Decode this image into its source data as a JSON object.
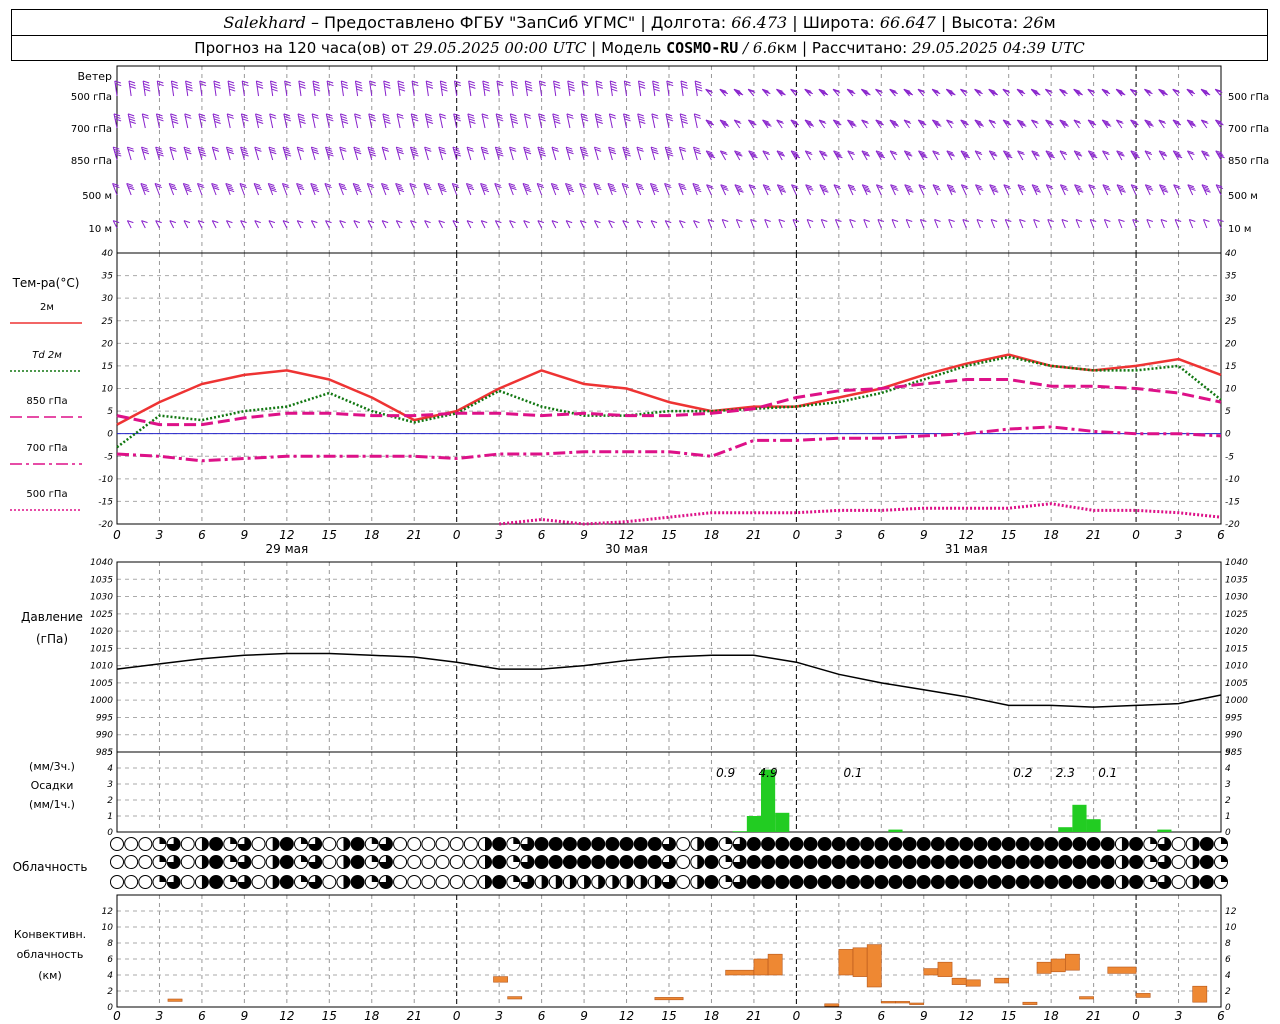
{
  "header": {
    "station": "Salekhard",
    "provider": "– Предоставлено ФГБУ \"ЗапСиб УГМС\"",
    "lon_label": "Долгота:",
    "lon": "66.473",
    "lat_label": "Широта:",
    "lat": "66.647",
    "alt_label": "Высота:",
    "alt": "26",
    "alt_unit": "м",
    "forecast_label": "Прогноз на 120 часа(ов) от",
    "forecast_start": "29.05.2025 00:00 UTC",
    "model_label": "Модель",
    "model": "COSMO-RU",
    "resolution": "/ 6.6",
    "res_unit": "км",
    "calc_label": "Рассчитано:",
    "calc_time": "29.05.2025 04:39 UTC"
  },
  "colors": {
    "t2m": "#ee3333",
    "td2m": "#117711",
    "t850": "#dd1188",
    "t700": "#dd1188",
    "t500": "#dd1188",
    "wind": "#8822cc",
    "pressure": "#000000",
    "precip": "#22cc22",
    "conv": "#ee8833",
    "zero": "#2222cc"
  },
  "chart_data": [
    {
      "type": "wind-barbs",
      "title": "Ветер",
      "levels": [
        "500 гПа",
        "700 гПа",
        "850 гПа",
        "500 м",
        "10 м"
      ],
      "wind_description": "wind barbs (direction and speed) at each level, every hour"
    },
    {
      "type": "line",
      "title": "Тем-ра(°C)",
      "ylim": [
        -20,
        40
      ],
      "yticks": [
        40,
        35,
        30,
        25,
        20,
        15,
        10,
        5,
        0,
        -5,
        -10,
        -15,
        -20
      ],
      "x_ticks": [
        "0",
        "3",
        "6",
        "9",
        "12",
        "15",
        "18",
        "21",
        "0",
        "3",
        "6",
        "9",
        "12",
        "15",
        "18",
        "21",
        "0",
        "3",
        "6",
        "9",
        "12",
        "15",
        "18",
        "21",
        "0",
        "3",
        "6"
      ],
      "dates": [
        "29 мая",
        "30 мая",
        "31 мая"
      ],
      "x": [
        0,
        3,
        6,
        9,
        12,
        15,
        18,
        21,
        24,
        27,
        30,
        33,
        36,
        39,
        42,
        45,
        48,
        51,
        54,
        57,
        60,
        63,
        66,
        69,
        72,
        75,
        78
      ],
      "series": [
        {
          "name": "2м",
          "key": "t2m",
          "style": "solid",
          "values": [
            2,
            7,
            11,
            13,
            14,
            12,
            8,
            3,
            5,
            10,
            14,
            11,
            10,
            7,
            5,
            6,
            6,
            8,
            10,
            13,
            15.5,
            17.5,
            15,
            14,
            15,
            16.5,
            13
          ]
        },
        {
          "name": "Td  2м",
          "key": "td2m",
          "style": "dotted",
          "values": [
            -3,
            4,
            3,
            5,
            6,
            9,
            5,
            2.5,
            4.5,
            9.5,
            6,
            4,
            4,
            5,
            5,
            5.5,
            6,
            7,
            9,
            12,
            15,
            17,
            15,
            14,
            14,
            15,
            7.5
          ]
        },
        {
          "name": "850 гПа",
          "key": "t850",
          "style": "dash",
          "values": [
            4,
            2,
            2,
            3.5,
            4.5,
            4.5,
            4,
            4,
            4.5,
            4.5,
            4,
            4.5,
            4,
            4,
            4.5,
            5.5,
            8,
            9.5,
            10,
            11,
            12,
            12,
            10.5,
            10.5,
            10,
            9,
            7
          ]
        },
        {
          "name": "700 гПа",
          "key": "t700",
          "style": "dashdot",
          "values": [
            -4.5,
            -5,
            -6,
            -5.5,
            -5,
            -5,
            -5,
            -5,
            -5.5,
            -4.5,
            -4.5,
            -4,
            -4,
            -4,
            -5,
            -1.5,
            -1.5,
            -1,
            -1,
            -0.5,
            0,
            1,
            1.5,
            0.5,
            0,
            0,
            -0.5
          ]
        },
        {
          "name": "500 гПа",
          "key": "t500",
          "style": "dotted-fine",
          "values": [
            null,
            null,
            null,
            null,
            null,
            null,
            null,
            null,
            null,
            -20,
            -19,
            -20,
            -19.5,
            -18.5,
            -17.5,
            -17.5,
            -17.5,
            -17,
            -17,
            -16.5,
            -16.5,
            -16.5,
            -15.5,
            -17,
            -17,
            -17.5,
            -18.5
          ]
        }
      ]
    },
    {
      "type": "line",
      "title": "Давление",
      "unit": "(гПа)",
      "ylim": [
        985,
        1040
      ],
      "yticks": [
        1040,
        1035,
        1030,
        1025,
        1020,
        1015,
        1010,
        1005,
        1000,
        995,
        990,
        985
      ],
      "x": [
        0,
        3,
        6,
        9,
        12,
        15,
        18,
        21,
        24,
        27,
        30,
        33,
        36,
        39,
        42,
        45,
        48,
        51,
        54,
        57,
        60,
        63,
        66,
        69,
        72,
        75,
        78
      ],
      "series": [
        {
          "name": "pressure",
          "key": "pressure",
          "values": [
            1009,
            1010.5,
            1012,
            1013,
            1013.5,
            1013.5,
            1013,
            1012.5,
            1011,
            1009,
            1009,
            1010,
            1011.5,
            1012.5,
            1013,
            1013,
            1011,
            1007.5,
            1005,
            1003,
            1001,
            998.5,
            998.5,
            998,
            998.5,
            999,
            1001.5
          ]
        }
      ]
    },
    {
      "type": "bar",
      "title": "Осадки",
      "units": [
        "(мм/3ч.)",
        "(мм/1ч.)"
      ],
      "ylim": [
        0,
        5
      ],
      "yticks": [
        5,
        4,
        3,
        2,
        1,
        0
      ],
      "bars": [
        {
          "t": 44,
          "v": 0.05
        },
        {
          "t": 45,
          "v": 1.0
        },
        {
          "t": 46,
          "v": 3.9
        },
        {
          "t": 47,
          "v": 1.2
        },
        {
          "t": 55,
          "v": 0.15
        },
        {
          "t": 67,
          "v": 0.3
        },
        {
          "t": 68,
          "v": 1.7
        },
        {
          "t": 69,
          "v": 0.8
        },
        {
          "t": 74,
          "v": 0.15
        }
      ],
      "totals": [
        {
          "t": 43,
          "label": "0.9"
        },
        {
          "t": 46,
          "label": "4.9"
        },
        {
          "t": 52,
          "label": "0.1"
        },
        {
          "t": 64,
          "label": "0.2"
        },
        {
          "t": 67,
          "label": "2.3"
        },
        {
          "t": 70,
          "label": "0.1"
        }
      ]
    },
    {
      "type": "table",
      "title": "Облачность",
      "cloud_description": "three rows of cloud-cover symbols (low, middle, high), one per hour"
    },
    {
      "type": "bar",
      "title": "Конвективн. облачность",
      "unit": "(км)",
      "ylim": [
        0,
        14
      ],
      "yticks": [
        12,
        10,
        8,
        6,
        4,
        2,
        0
      ],
      "ranges": [
        {
          "t0": 3.6,
          "t1": 4.6,
          "lo": 0.7,
          "hi": 1.0
        },
        {
          "t0": 26.6,
          "t1": 27.6,
          "lo": 3.1,
          "hi": 3.8
        },
        {
          "t0": 27.6,
          "t1": 28.6,
          "lo": 1.0,
          "hi": 1.3
        },
        {
          "t0": 38.0,
          "t1": 40.0,
          "lo": 0.9,
          "hi": 1.2
        },
        {
          "t0": 43.0,
          "t1": 45.0,
          "lo": 4.0,
          "hi": 4.6
        },
        {
          "t0": 45.0,
          "t1": 46.0,
          "lo": 4.0,
          "hi": 6.0
        },
        {
          "t0": 46.0,
          "t1": 47.0,
          "lo": 4.0,
          "hi": 6.6
        },
        {
          "t0": 50.0,
          "t1": 51.0,
          "lo": 0.1,
          "hi": 0.4
        },
        {
          "t0": 51.0,
          "t1": 52.0,
          "lo": 4.0,
          "hi": 7.2
        },
        {
          "t0": 52.0,
          "t1": 53.0,
          "lo": 3.8,
          "hi": 7.4
        },
        {
          "t0": 53.0,
          "t1": 54.0,
          "lo": 2.5,
          "hi": 7.8
        },
        {
          "t0": 54.0,
          "t1": 55.0,
          "lo": 0.5,
          "hi": 0.7
        },
        {
          "t0": 55.0,
          "t1": 56.0,
          "lo": 0.5,
          "hi": 0.7
        },
        {
          "t0": 56.0,
          "t1": 57.0,
          "lo": 0.3,
          "hi": 0.5
        },
        {
          "t0": 57.0,
          "t1": 58.0,
          "lo": 4.0,
          "hi": 4.8
        },
        {
          "t0": 58.0,
          "t1": 59.0,
          "lo": 3.8,
          "hi": 5.6
        },
        {
          "t0": 59.0,
          "t1": 60.0,
          "lo": 2.8,
          "hi": 3.6
        },
        {
          "t0": 60.0,
          "t1": 61.0,
          "lo": 2.6,
          "hi": 3.4
        },
        {
          "t0": 62.0,
          "t1": 63.0,
          "lo": 3.0,
          "hi": 3.6
        },
        {
          "t0": 64.0,
          "t1": 65.0,
          "lo": 0.3,
          "hi": 0.6
        },
        {
          "t0": 65.0,
          "t1": 66.0,
          "lo": 4.2,
          "hi": 5.6
        },
        {
          "t0": 66.0,
          "t1": 67.0,
          "lo": 4.4,
          "hi": 6.0
        },
        {
          "t0": 67.0,
          "t1": 68.0,
          "lo": 4.6,
          "hi": 6.6
        },
        {
          "t0": 68.0,
          "t1": 69.0,
          "lo": 1.0,
          "hi": 1.3
        },
        {
          "t0": 70.0,
          "t1": 72.0,
          "lo": 4.2,
          "hi": 5.0
        },
        {
          "t0": 72.0,
          "t1": 73.0,
          "lo": 1.2,
          "hi": 1.7
        },
        {
          "t0": 76.0,
          "t1": 77.0,
          "lo": 0.6,
          "hi": 2.6
        }
      ]
    }
  ]
}
